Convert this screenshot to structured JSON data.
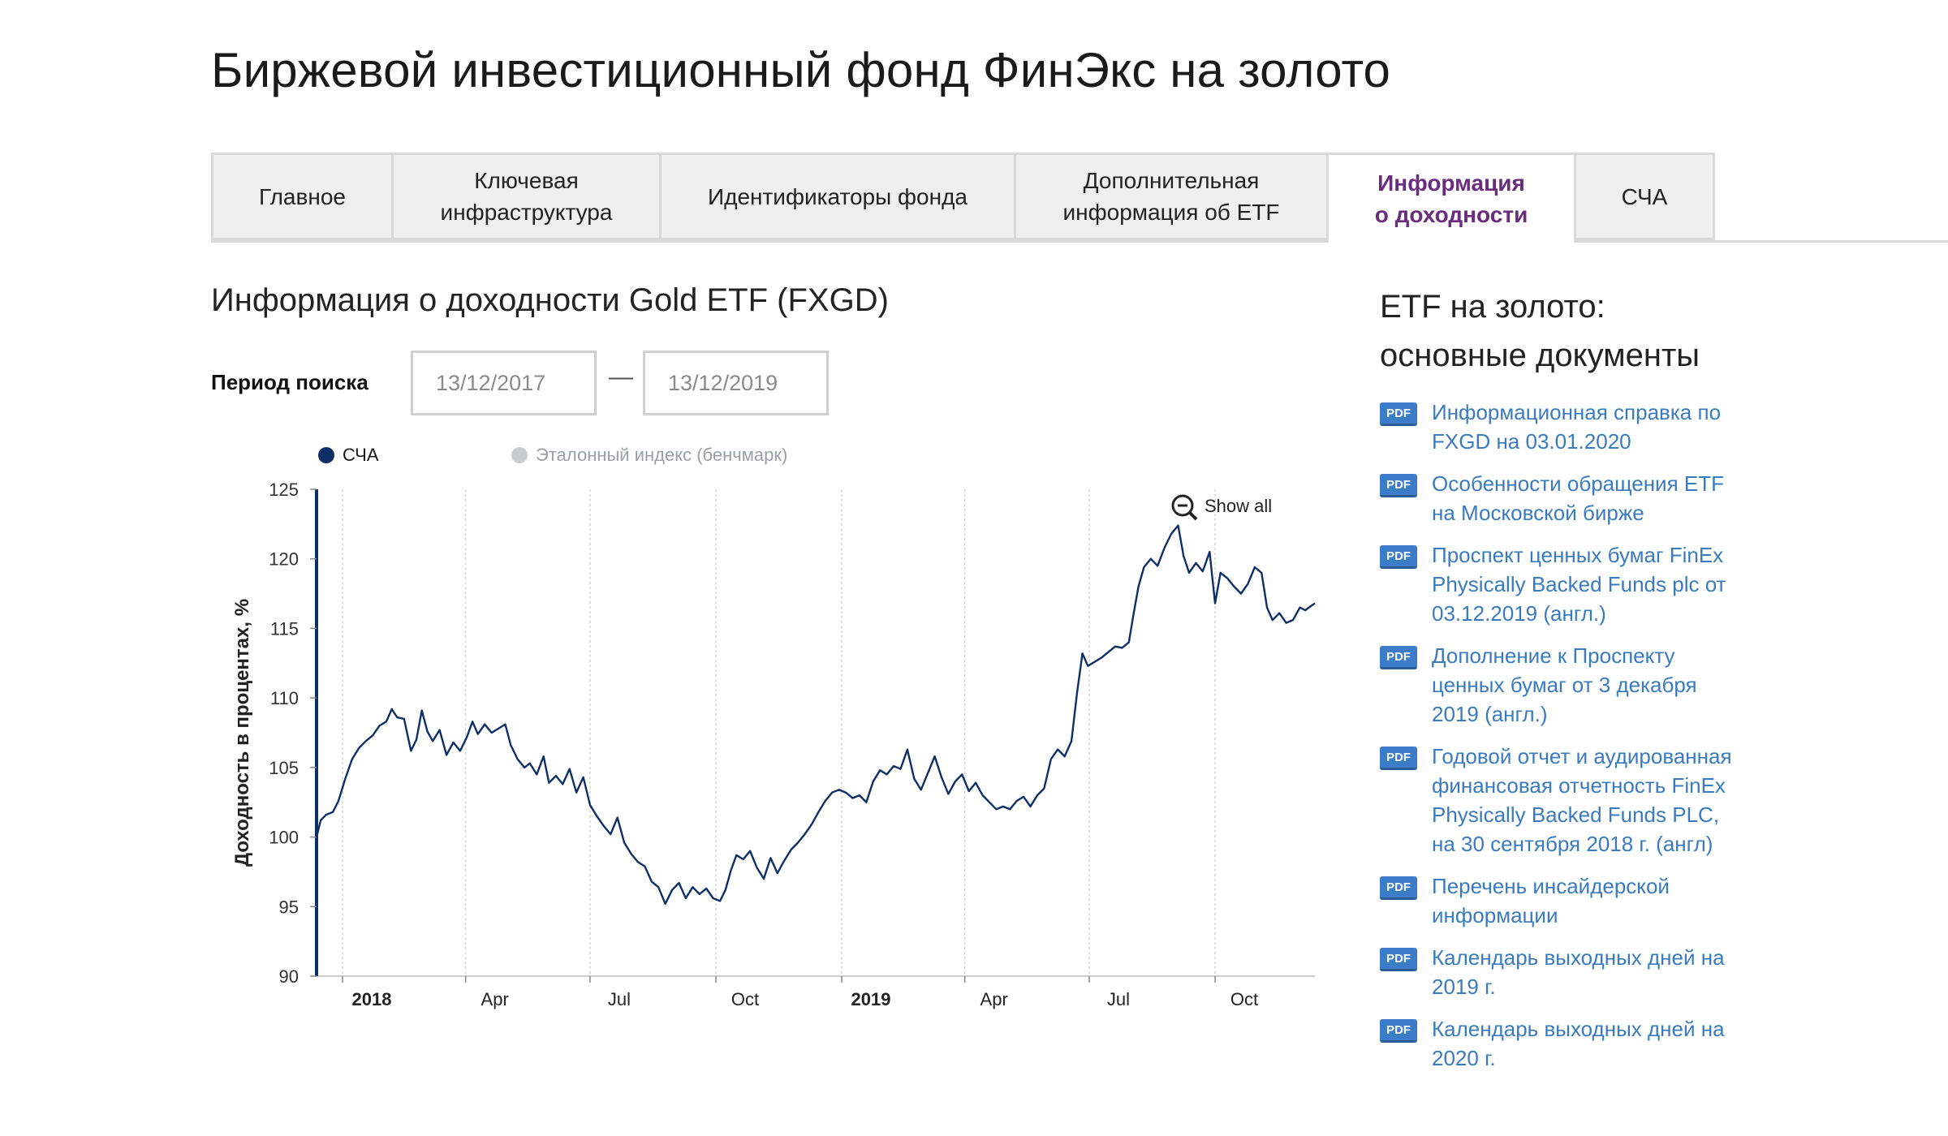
{
  "page": {
    "title": "Биржевой инвестиционный фонд ФинЭкс на золото"
  },
  "tabs": [
    {
      "id": "main",
      "label_lines": [
        "Главное"
      ],
      "active": false,
      "width": 222
    },
    {
      "id": "infra",
      "label_lines": [
        "Ключевая",
        "инфраструктура"
      ],
      "active": false,
      "width": 330
    },
    {
      "id": "ids",
      "label_lines": [
        "Идентификаторы фонда"
      ],
      "active": false,
      "width": 437
    },
    {
      "id": "extra",
      "label_lines": [
        "Дополнительная",
        "информация об ETF"
      ],
      "active": false,
      "width": 385
    },
    {
      "id": "yield",
      "label_lines": [
        "Информация",
        "о доходности"
      ],
      "active": true,
      "width": 305
    },
    {
      "id": "nav",
      "label_lines": [
        "СЧА"
      ],
      "active": false,
      "width": 174
    }
  ],
  "section": {
    "title": "Информация о доходности Gold ETF (FXGD)",
    "period_label": "Период поиска",
    "date_from": "13/12/2017",
    "date_to": "13/12/2019",
    "separator": "—"
  },
  "legend": {
    "nav_label": "СЧА",
    "bench_label": "Эталонный индекс (бенчмарк)",
    "nav_color": "#0e2f66",
    "bench_color": "#c8cbd0"
  },
  "chart_data": {
    "type": "line",
    "ylabel": "Доходность в процентах, %",
    "ylim": [
      90,
      125
    ],
    "yticks": [
      90,
      95,
      100,
      105,
      110,
      115,
      120,
      125
    ],
    "x_start": "2017-12-13",
    "x_end": "2019-12-13",
    "xticks": [
      {
        "date": "2018-01-01",
        "label": "2018",
        "bold": true
      },
      {
        "date": "2018-04-01",
        "label": "Apr",
        "bold": false
      },
      {
        "date": "2018-07-01",
        "label": "Jul",
        "bold": false
      },
      {
        "date": "2018-10-01",
        "label": "Oct",
        "bold": false
      },
      {
        "date": "2019-01-01",
        "label": "2019",
        "bold": true
      },
      {
        "date": "2019-04-01",
        "label": "Apr",
        "bold": false
      },
      {
        "date": "2019-07-01",
        "label": "Jul",
        "bold": false
      },
      {
        "date": "2019-10-01",
        "label": "Oct",
        "bold": false
      }
    ],
    "grid": "vertical",
    "zoom_label": "Show all",
    "series": [
      {
        "name": "СЧА",
        "color": "#0e2f66",
        "points": [
          [
            "2017-12-13",
            100.0
          ],
          [
            "2017-12-16",
            101.2
          ],
          [
            "2017-12-20",
            101.6
          ],
          [
            "2017-12-25",
            101.8
          ],
          [
            "2017-12-29",
            102.6
          ],
          [
            "2018-01-03",
            104.2
          ],
          [
            "2018-01-08",
            105.6
          ],
          [
            "2018-01-13",
            106.4
          ],
          [
            "2018-01-18",
            106.9
          ],
          [
            "2018-01-23",
            107.3
          ],
          [
            "2018-01-28",
            108.0
          ],
          [
            "2018-02-02",
            108.3
          ],
          [
            "2018-02-06",
            109.2
          ],
          [
            "2018-02-10",
            108.6
          ],
          [
            "2018-02-15",
            108.5
          ],
          [
            "2018-02-20",
            106.2
          ],
          [
            "2018-02-24",
            107.0
          ],
          [
            "2018-02-28",
            109.1
          ],
          [
            "2018-03-04",
            107.6
          ],
          [
            "2018-03-08",
            106.9
          ],
          [
            "2018-03-13",
            107.7
          ],
          [
            "2018-03-18",
            105.9
          ],
          [
            "2018-03-23",
            106.8
          ],
          [
            "2018-03-28",
            106.2
          ],
          [
            "2018-04-02",
            107.2
          ],
          [
            "2018-04-06",
            108.3
          ],
          [
            "2018-04-10",
            107.4
          ],
          [
            "2018-04-15",
            108.1
          ],
          [
            "2018-04-20",
            107.5
          ],
          [
            "2018-04-25",
            107.8
          ],
          [
            "2018-04-30",
            108.1
          ],
          [
            "2018-05-04",
            106.6
          ],
          [
            "2018-05-09",
            105.6
          ],
          [
            "2018-05-14",
            105.0
          ],
          [
            "2018-05-18",
            105.3
          ],
          [
            "2018-05-23",
            104.5
          ],
          [
            "2018-05-28",
            105.8
          ],
          [
            "2018-06-01",
            103.9
          ],
          [
            "2018-06-06",
            104.4
          ],
          [
            "2018-06-11",
            103.8
          ],
          [
            "2018-06-16",
            104.9
          ],
          [
            "2018-06-21",
            103.2
          ],
          [
            "2018-06-26",
            104.3
          ],
          [
            "2018-07-01",
            102.3
          ],
          [
            "2018-07-06",
            101.5
          ],
          [
            "2018-07-11",
            100.8
          ],
          [
            "2018-07-16",
            100.2
          ],
          [
            "2018-07-21",
            101.4
          ],
          [
            "2018-07-26",
            99.6
          ],
          [
            "2018-07-31",
            98.8
          ],
          [
            "2018-08-05",
            98.2
          ],
          [
            "2018-08-10",
            97.9
          ],
          [
            "2018-08-15",
            96.8
          ],
          [
            "2018-08-20",
            96.4
          ],
          [
            "2018-08-25",
            95.2
          ],
          [
            "2018-08-30",
            96.2
          ],
          [
            "2018-09-04",
            96.7
          ],
          [
            "2018-09-09",
            95.6
          ],
          [
            "2018-09-14",
            96.4
          ],
          [
            "2018-09-19",
            95.9
          ],
          [
            "2018-09-24",
            96.3
          ],
          [
            "2018-09-29",
            95.6
          ],
          [
            "2018-10-04",
            95.4
          ],
          [
            "2018-10-08",
            96.2
          ],
          [
            "2018-10-12",
            97.6
          ],
          [
            "2018-10-16",
            98.7
          ],
          [
            "2018-10-21",
            98.4
          ],
          [
            "2018-10-26",
            99.0
          ],
          [
            "2018-10-31",
            97.8
          ],
          [
            "2018-11-05",
            97.0
          ],
          [
            "2018-11-10",
            98.5
          ],
          [
            "2018-11-15",
            97.4
          ],
          [
            "2018-11-20",
            98.3
          ],
          [
            "2018-11-25",
            99.1
          ],
          [
            "2018-11-30",
            99.6
          ],
          [
            "2018-12-05",
            100.2
          ],
          [
            "2018-12-10",
            100.9
          ],
          [
            "2018-12-15",
            101.8
          ],
          [
            "2018-12-20",
            102.6
          ],
          [
            "2018-12-25",
            103.2
          ],
          [
            "2018-12-30",
            103.4
          ],
          [
            "2019-01-04",
            103.2
          ],
          [
            "2019-01-09",
            102.8
          ],
          [
            "2019-01-14",
            103.0
          ],
          [
            "2019-01-19",
            102.5
          ],
          [
            "2019-01-24",
            104.0
          ],
          [
            "2019-01-29",
            104.8
          ],
          [
            "2019-02-03",
            104.5
          ],
          [
            "2019-02-08",
            105.1
          ],
          [
            "2019-02-13",
            104.9
          ],
          [
            "2019-02-18",
            106.3
          ],
          [
            "2019-02-23",
            104.2
          ],
          [
            "2019-02-28",
            103.4
          ],
          [
            "2019-03-05",
            104.6
          ],
          [
            "2019-03-10",
            105.8
          ],
          [
            "2019-03-15",
            104.3
          ],
          [
            "2019-03-20",
            103.1
          ],
          [
            "2019-03-25",
            104.0
          ],
          [
            "2019-03-30",
            104.5
          ],
          [
            "2019-04-04",
            103.3
          ],
          [
            "2019-04-09",
            103.9
          ],
          [
            "2019-04-14",
            103.0
          ],
          [
            "2019-04-19",
            102.5
          ],
          [
            "2019-04-24",
            102.0
          ],
          [
            "2019-04-29",
            102.2
          ],
          [
            "2019-05-04",
            102.0
          ],
          [
            "2019-05-09",
            102.6
          ],
          [
            "2019-05-14",
            102.9
          ],
          [
            "2019-05-19",
            102.2
          ],
          [
            "2019-05-24",
            103.0
          ],
          [
            "2019-05-29",
            103.5
          ],
          [
            "2019-06-03",
            105.6
          ],
          [
            "2019-06-08",
            106.3
          ],
          [
            "2019-06-13",
            105.8
          ],
          [
            "2019-06-18",
            106.9
          ],
          [
            "2019-06-22",
            110.3
          ],
          [
            "2019-06-26",
            113.2
          ],
          [
            "2019-06-30",
            112.3
          ],
          [
            "2019-07-05",
            112.6
          ],
          [
            "2019-07-10",
            112.9
          ],
          [
            "2019-07-15",
            113.3
          ],
          [
            "2019-07-20",
            113.7
          ],
          [
            "2019-07-25",
            113.6
          ],
          [
            "2019-07-30",
            114.0
          ],
          [
            "2019-08-02",
            115.8
          ],
          [
            "2019-08-06",
            118.0
          ],
          [
            "2019-08-10",
            119.4
          ],
          [
            "2019-08-15",
            120.0
          ],
          [
            "2019-08-20",
            119.5
          ],
          [
            "2019-08-25",
            120.8
          ],
          [
            "2019-08-30",
            121.8
          ],
          [
            "2019-09-04",
            122.4
          ],
          [
            "2019-09-08",
            120.2
          ],
          [
            "2019-09-12",
            119.0
          ],
          [
            "2019-09-17",
            119.7
          ],
          [
            "2019-09-22",
            119.1
          ],
          [
            "2019-09-27",
            120.5
          ],
          [
            "2019-10-01",
            116.8
          ],
          [
            "2019-10-05",
            119.0
          ],
          [
            "2019-10-10",
            118.6
          ],
          [
            "2019-10-15",
            118.0
          ],
          [
            "2019-10-20",
            117.5
          ],
          [
            "2019-10-25",
            118.2
          ],
          [
            "2019-10-30",
            119.4
          ],
          [
            "2019-11-04",
            119.0
          ],
          [
            "2019-11-08",
            116.5
          ],
          [
            "2019-11-12",
            115.6
          ],
          [
            "2019-11-17",
            116.1
          ],
          [
            "2019-11-22",
            115.4
          ],
          [
            "2019-11-27",
            115.6
          ],
          [
            "2019-12-02",
            116.5
          ],
          [
            "2019-12-06",
            116.3
          ],
          [
            "2019-12-10",
            116.6
          ],
          [
            "2019-12-13",
            116.8
          ]
        ]
      }
    ]
  },
  "docs": {
    "title_lines": [
      "ETF на золото:",
      "основные документы"
    ],
    "badge": "PDF",
    "items": [
      {
        "lines": [
          "Информационная справка по",
          "FXGD на 03.01.2020"
        ]
      },
      {
        "lines": [
          "Особенности обращения ETF",
          "на Московской бирже"
        ]
      },
      {
        "lines": [
          "Проспект ценных бумаг FinEx",
          "Physically Backed Funds plc от",
          "03.12.2019 (англ.)"
        ]
      },
      {
        "lines": [
          "Дополнение к Проспекту",
          "ценных бумаг от 3 декабря",
          "2019 (англ.)"
        ]
      },
      {
        "lines": [
          "Годовой отчет и аудированная",
          "финансовая отчетность FinEx",
          "Physically Backed Funds PLC,",
          "на 30 сентября 2018 г. (англ)"
        ]
      },
      {
        "lines": [
          "Перечень инсайдерской",
          "информации"
        ]
      },
      {
        "lines": [
          "Календарь выходных дней на",
          "2019 г."
        ]
      },
      {
        "lines": [
          "Календарь выходных дней на",
          "2020 г."
        ]
      }
    ]
  }
}
